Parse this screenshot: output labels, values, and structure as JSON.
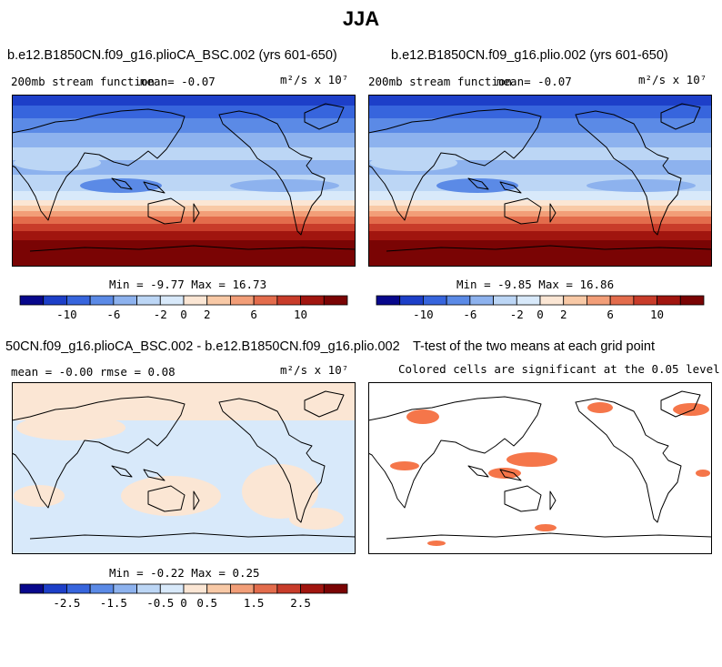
{
  "figure": {
    "title": "JJA"
  },
  "colors": {
    "scale": [
      "#08088c",
      "#1d3fc8",
      "#3765dd",
      "#5b8ae6",
      "#8db2ee",
      "#bcd6f5",
      "#d8e9fa",
      "#fbe6d4",
      "#f8c9a6",
      "#f29e78",
      "#e36c4c",
      "#c83c2a",
      "#a1150f",
      "#7a0404"
    ],
    "diff_pos": "#fbe6d4",
    "diff_neg": "#d8e9fa",
    "sig": "#f5764a"
  },
  "chart_data": [
    {
      "id": "panel1",
      "type": "heatmap",
      "title": "b.e12.B1850CN.f09_g16.plioCA_BSC.002 (yrs 601-650)",
      "left_label": "200mb stream function",
      "mean_text": "mean=  -0.07",
      "units": "m²/s x 10⁷",
      "min": -9.77,
      "max": 16.73,
      "minmax_text": "Min =  -9.77 Max =  16.73",
      "colorbar": {
        "levels": [
          -12,
          -10,
          -8,
          -6,
          -4,
          -2,
          0,
          2,
          4,
          6,
          8,
          10,
          12
        ],
        "tick_labels": [
          "-10",
          "-6",
          "-2",
          "0",
          "2",
          "6",
          "10"
        ]
      }
    },
    {
      "id": "panel2",
      "type": "heatmap",
      "title": "b.e12.B1850CN.f09_g16.plio.002 (yrs 601-650)",
      "left_label": "200mb stream function",
      "mean_text": "mean=  -0.07",
      "units": "m²/s x 10⁷",
      "min": -9.85,
      "max": 16.86,
      "minmax_text": "Min =  -9.85 Max =  16.86",
      "colorbar": {
        "levels": [
          -12,
          -10,
          -8,
          -6,
          -4,
          -2,
          0,
          2,
          4,
          6,
          8,
          10,
          12
        ],
        "tick_labels": [
          "-10",
          "-6",
          "-2",
          "0",
          "2",
          "6",
          "10"
        ]
      }
    },
    {
      "id": "panel3",
      "type": "heatmap",
      "title": "50CN.f09_g16.plioCA_BSC.002 - b.e12.B1850CN.f09_g16.plio.002",
      "left_label": "mean =  -0.00     rmse =   0.08",
      "units": "m²/s x 10⁷",
      "min": -0.22,
      "max": 0.25,
      "minmax_text": "Min =  -0.22 Max =   0.25",
      "colorbar": {
        "levels": [
          -3,
          -2.5,
          -2,
          -1.5,
          -1,
          -0.5,
          0,
          0.5,
          1,
          1.5,
          2,
          2.5,
          3
        ],
        "tick_labels": [
          "-2.5",
          "-1.5",
          "-0.5",
          "0",
          "0.5",
          "1.5",
          "2.5"
        ]
      }
    },
    {
      "id": "panel4",
      "type": "heatmap",
      "title": "T-test of the two means at each grid point",
      "subtitle": "Colored cells are significant at the 0.05 level"
    }
  ]
}
